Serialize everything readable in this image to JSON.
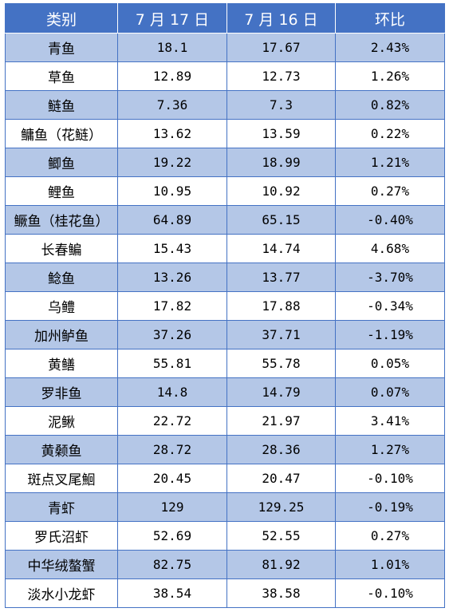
{
  "header": {
    "category": "类别",
    "date_a": "7 月 17 日",
    "date_b": "7 月 16 日",
    "change": "环比"
  },
  "rows": [
    {
      "name": "青鱼",
      "jul17": "18.1",
      "jul16": "17.67",
      "change": "2.43%"
    },
    {
      "name": "草鱼",
      "jul17": "12.89",
      "jul16": "12.73",
      "change": "1.26%"
    },
    {
      "name": "鲢鱼",
      "jul17": "7.36",
      "jul16": "7.3",
      "change": "0.82%"
    },
    {
      "name": "鳙鱼（花鲢）",
      "jul17": "13.62",
      "jul16": "13.59",
      "change": "0.22%"
    },
    {
      "name": "鲫鱼",
      "jul17": "19.22",
      "jul16": "18.99",
      "change": "1.21%"
    },
    {
      "name": "鲤鱼",
      "jul17": "10.95",
      "jul16": "10.92",
      "change": "0.27%"
    },
    {
      "name": "鳜鱼（桂花鱼）",
      "jul17": "64.89",
      "jul16": "65.15",
      "change": "-0.40%"
    },
    {
      "name": "长春鳊",
      "jul17": "15.43",
      "jul16": "14.74",
      "change": "4.68%"
    },
    {
      "name": "鲶鱼",
      "jul17": "13.26",
      "jul16": "13.77",
      "change": "-3.70%"
    },
    {
      "name": "乌鳢",
      "jul17": "17.82",
      "jul16": "17.88",
      "change": "-0.34%"
    },
    {
      "name": "加州鲈鱼",
      "jul17": "37.26",
      "jul16": "37.71",
      "change": "-1.19%"
    },
    {
      "name": "黄鳝",
      "jul17": "55.81",
      "jul16": "55.78",
      "change": "0.05%"
    },
    {
      "name": "罗非鱼",
      "jul17": "14.8",
      "jul16": "14.79",
      "change": "0.07%"
    },
    {
      "name": "泥鳅",
      "jul17": "22.72",
      "jul16": "21.97",
      "change": "3.41%"
    },
    {
      "name": "黄颡鱼",
      "jul17": "28.72",
      "jul16": "28.36",
      "change": "1.27%"
    },
    {
      "name": "斑点叉尾鮰",
      "jul17": "20.45",
      "jul16": "20.47",
      "change": "-0.10%"
    },
    {
      "name": "青虾",
      "jul17": "129",
      "jul16": "129.25",
      "change": "-0.19%"
    },
    {
      "name": "罗氏沼虾",
      "jul17": "52.69",
      "jul16": "52.55",
      "change": "0.27%"
    },
    {
      "name": "中华绒螯蟹",
      "jul17": "82.75",
      "jul16": "81.92",
      "change": "1.01%"
    },
    {
      "name": "淡水小龙虾",
      "jul17": "38.54",
      "jul16": "38.58",
      "change": "-0.10%"
    }
  ]
}
